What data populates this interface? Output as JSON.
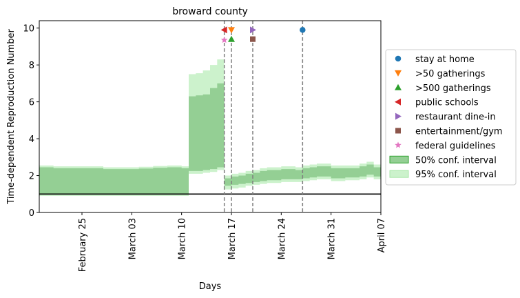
{
  "chart_data": {
    "type": "line",
    "title": "broward county",
    "xlabel": "Days",
    "ylabel": "Time-dependent Reproduction Number",
    "x_range": [
      "2020-02-19",
      "2020-04-07"
    ],
    "ylim": [
      0,
      10.4
    ],
    "grid": false,
    "legend_placement": "center-right outside",
    "x_ticks": [
      {
        "date": "2020-02-25",
        "label": "February 25"
      },
      {
        "date": "2020-03-03",
        "label": "March 03"
      },
      {
        "date": "2020-03-10",
        "label": "March 10"
      },
      {
        "date": "2020-03-17",
        "label": "March 17"
      },
      {
        "date": "2020-03-24",
        "label": "March 24"
      },
      {
        "date": "2020-03-31",
        "label": "March 31"
      },
      {
        "date": "2020-04-07",
        "label": "April 07"
      }
    ],
    "y_ticks": [
      0,
      2,
      4,
      6,
      8,
      10
    ],
    "reference_line": {
      "y": 1,
      "color": "#000000"
    },
    "series": [
      {
        "name": "95% conf. interval",
        "color": "#ccf2cc",
        "points": [
          {
            "date": "2020-02-19",
            "lower": 0.9,
            "upper": 2.55
          },
          {
            "date": "2020-02-21",
            "lower": 0.9,
            "upper": 2.5
          },
          {
            "date": "2020-02-25",
            "lower": 0.9,
            "upper": 2.5
          },
          {
            "date": "2020-02-28",
            "lower": 0.9,
            "upper": 2.45
          },
          {
            "date": "2020-03-04",
            "lower": 0.9,
            "upper": 2.48
          },
          {
            "date": "2020-03-06",
            "lower": 0.9,
            "upper": 2.52
          },
          {
            "date": "2020-03-08",
            "lower": 0.9,
            "upper": 2.55
          },
          {
            "date": "2020-03-10",
            "lower": 0.9,
            "upper": 2.5
          },
          {
            "date": "2020-03-11",
            "lower": 2.1,
            "upper": 7.5
          },
          {
            "date": "2020-03-12",
            "lower": 2.1,
            "upper": 7.55
          },
          {
            "date": "2020-03-13",
            "lower": 2.15,
            "upper": 7.7
          },
          {
            "date": "2020-03-14",
            "lower": 2.2,
            "upper": 8.0
          },
          {
            "date": "2020-03-15",
            "lower": 2.3,
            "upper": 8.3
          },
          {
            "date": "2020-03-16",
            "lower": 1.25,
            "upper": 2.0
          },
          {
            "date": "2020-03-17",
            "lower": 1.3,
            "upper": 2.1
          },
          {
            "date": "2020-03-18",
            "lower": 1.35,
            "upper": 2.15
          },
          {
            "date": "2020-03-19",
            "lower": 1.45,
            "upper": 2.25
          },
          {
            "date": "2020-03-20",
            "lower": 1.5,
            "upper": 2.3
          },
          {
            "date": "2020-03-21",
            "lower": 1.55,
            "upper": 2.4
          },
          {
            "date": "2020-03-22",
            "lower": 1.6,
            "upper": 2.45
          },
          {
            "date": "2020-03-24",
            "lower": 1.65,
            "upper": 2.5
          },
          {
            "date": "2020-03-26",
            "lower": 1.65,
            "upper": 2.45
          },
          {
            "date": "2020-03-27",
            "lower": 1.7,
            "upper": 2.55
          },
          {
            "date": "2020-03-28",
            "lower": 1.75,
            "upper": 2.6
          },
          {
            "date": "2020-03-29",
            "lower": 1.8,
            "upper": 2.65
          },
          {
            "date": "2020-03-31",
            "lower": 1.7,
            "upper": 2.55
          },
          {
            "date": "2020-04-02",
            "lower": 1.75,
            "upper": 2.55
          },
          {
            "date": "2020-04-04",
            "lower": 1.8,
            "upper": 2.65
          },
          {
            "date": "2020-04-05",
            "lower": 1.9,
            "upper": 2.75
          },
          {
            "date": "2020-04-06",
            "lower": 1.8,
            "upper": 2.6
          },
          {
            "date": "2020-04-07",
            "lower": 1.8,
            "upper": 2.6
          }
        ]
      },
      {
        "name": "50% conf. interval",
        "color": "#94cf94",
        "points": [
          {
            "date": "2020-02-19",
            "lower": 1.0,
            "upper": 2.45
          },
          {
            "date": "2020-02-21",
            "lower": 1.0,
            "upper": 2.4
          },
          {
            "date": "2020-02-25",
            "lower": 1.0,
            "upper": 2.4
          },
          {
            "date": "2020-02-28",
            "lower": 1.0,
            "upper": 2.35
          },
          {
            "date": "2020-03-04",
            "lower": 1.0,
            "upper": 2.38
          },
          {
            "date": "2020-03-06",
            "lower": 1.0,
            "upper": 2.42
          },
          {
            "date": "2020-03-08",
            "lower": 1.0,
            "upper": 2.45
          },
          {
            "date": "2020-03-10",
            "lower": 1.0,
            "upper": 2.4
          },
          {
            "date": "2020-03-11",
            "lower": 2.25,
            "upper": 6.3
          },
          {
            "date": "2020-03-12",
            "lower": 2.25,
            "upper": 6.35
          },
          {
            "date": "2020-03-13",
            "lower": 2.3,
            "upper": 6.4
          },
          {
            "date": "2020-03-14",
            "lower": 2.35,
            "upper": 6.75
          },
          {
            "date": "2020-03-15",
            "lower": 2.45,
            "upper": 7.0
          },
          {
            "date": "2020-03-16",
            "lower": 1.45,
            "upper": 1.85
          },
          {
            "date": "2020-03-17",
            "lower": 1.5,
            "upper": 1.95
          },
          {
            "date": "2020-03-18",
            "lower": 1.55,
            "upper": 2.0
          },
          {
            "date": "2020-03-19",
            "lower": 1.6,
            "upper": 2.1
          },
          {
            "date": "2020-03-20",
            "lower": 1.65,
            "upper": 2.15
          },
          {
            "date": "2020-03-21",
            "lower": 1.7,
            "upper": 2.25
          },
          {
            "date": "2020-03-22",
            "lower": 1.75,
            "upper": 2.3
          },
          {
            "date": "2020-03-24",
            "lower": 1.8,
            "upper": 2.35
          },
          {
            "date": "2020-03-26",
            "lower": 1.8,
            "upper": 2.3
          },
          {
            "date": "2020-03-27",
            "lower": 1.85,
            "upper": 2.4
          },
          {
            "date": "2020-03-28",
            "lower": 1.9,
            "upper": 2.45
          },
          {
            "date": "2020-03-29",
            "lower": 1.95,
            "upper": 2.5
          },
          {
            "date": "2020-03-31",
            "lower": 1.85,
            "upper": 2.4
          },
          {
            "date": "2020-04-02",
            "lower": 1.9,
            "upper": 2.4
          },
          {
            "date": "2020-04-04",
            "lower": 1.95,
            "upper": 2.5
          },
          {
            "date": "2020-04-05",
            "lower": 2.05,
            "upper": 2.6
          },
          {
            "date": "2020-04-06",
            "lower": 1.95,
            "upper": 2.45
          },
          {
            "date": "2020-04-07",
            "lower": 1.95,
            "upper": 2.45
          }
        ]
      }
    ],
    "events": [
      {
        "name": "stay at home",
        "date": "2020-03-27",
        "y": 9.9,
        "marker": "circle",
        "color": "#1f77b4",
        "vline": true
      },
      {
        "name": ">50 gatherings",
        "date": "2020-03-17",
        "y": 9.9,
        "marker": "triangle-down",
        "color": "#ff7f0e",
        "vline": true
      },
      {
        "name": ">500 gatherings",
        "date": "2020-03-17",
        "y": 9.4,
        "marker": "triangle-up",
        "color": "#2ca02c",
        "vline": false
      },
      {
        "name": "public schools",
        "date": "2020-03-16",
        "y": 9.9,
        "marker": "triangle-left",
        "color": "#d62728",
        "vline": true
      },
      {
        "name": "restaurant dine-in",
        "date": "2020-03-20",
        "y": 9.9,
        "marker": "triangle-right",
        "color": "#9467bd",
        "vline": true
      },
      {
        "name": "entertainment/gym",
        "date": "2020-03-20",
        "y": 9.4,
        "marker": "square",
        "color": "#8c564b",
        "vline": false
      },
      {
        "name": "federal guidelines",
        "date": "2020-03-16",
        "y": 9.35,
        "marker": "star",
        "color": "#e377c2",
        "vline": false
      }
    ],
    "legend": [
      {
        "label": "stay at home",
        "kind": "marker",
        "marker": "circle",
        "color": "#1f77b4"
      },
      {
        "label": ">50 gatherings",
        "kind": "marker",
        "marker": "triangle-down",
        "color": "#ff7f0e"
      },
      {
        "label": ">500 gatherings",
        "kind": "marker",
        "marker": "triangle-up",
        "color": "#2ca02c"
      },
      {
        "label": "public schools",
        "kind": "marker",
        "marker": "triangle-left",
        "color": "#d62728"
      },
      {
        "label": "restaurant dine-in",
        "kind": "marker",
        "marker": "triangle-right",
        "color": "#9467bd"
      },
      {
        "label": "entertainment/gym",
        "kind": "marker",
        "marker": "square",
        "color": "#8c564b"
      },
      {
        "label": "federal guidelines",
        "kind": "marker",
        "marker": "star",
        "color": "#e377c2"
      },
      {
        "label": "50% conf. interval",
        "kind": "patch",
        "color": "#94cf94",
        "edge": "#2ca02c"
      },
      {
        "label": "95% conf. interval",
        "kind": "patch",
        "color": "#ccf2cc",
        "edge": "#a8e6a8"
      }
    ]
  }
}
